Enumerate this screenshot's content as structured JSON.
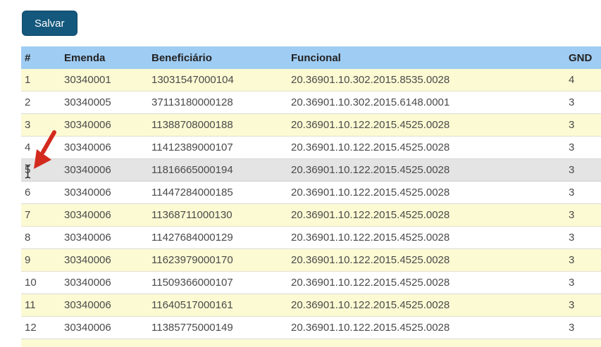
{
  "toolbar": {
    "save_label": "Salvar"
  },
  "table": {
    "columns": [
      "#",
      "Emenda",
      "Beneficiário",
      "Funcional",
      "GND"
    ],
    "rows": [
      [
        "1",
        "30340001",
        "13031547000104",
        "20.36901.10.302.2015.8535.0028",
        "4"
      ],
      [
        "2",
        "30340005",
        "37113180000128",
        "20.36901.10.302.2015.6148.0001",
        "3"
      ],
      [
        "3",
        "30340006",
        "11388708000188",
        "20.36901.10.122.2015.4525.0028",
        "3"
      ],
      [
        "4",
        "30340006",
        "11412389000107",
        "20.36901.10.122.2015.4525.0028",
        "3"
      ],
      [
        "5",
        "30340006",
        "11816665000194",
        "20.36901.10.122.2015.4525.0028",
        "3"
      ],
      [
        "6",
        "30340006",
        "11447284000185",
        "20.36901.10.122.2015.4525.0028",
        "3"
      ],
      [
        "7",
        "30340006",
        "11368711000130",
        "20.36901.10.122.2015.4525.0028",
        "3"
      ],
      [
        "8",
        "30340006",
        "11427684000129",
        "20.36901.10.122.2015.4525.0028",
        "3"
      ],
      [
        "9",
        "30340006",
        "11623979000170",
        "20.36901.10.122.2015.4525.0028",
        "3"
      ],
      [
        "10",
        "30340006",
        "11509366000107",
        "20.36901.10.122.2015.4525.0028",
        "3"
      ],
      [
        "11",
        "30340006",
        "11640517000161",
        "20.36901.10.122.2015.4525.0028",
        "3"
      ],
      [
        "12",
        "30340006",
        "11385775000149",
        "20.36901.10.122.2015.4525.0028",
        "3"
      ]
    ],
    "highlighted_row_number": 5,
    "partial_next_row": true
  },
  "annotations": {
    "red_arrow_target": "row-5",
    "text_cursor_over": "row-5-number-cell"
  },
  "colors": {
    "button_bg": "#14587d",
    "header_bg": "#9fccf3",
    "row_odd_bg": "#fcfad3",
    "row_even_bg": "#ffffff",
    "selected_row_bg": "#e4e4e4",
    "arrow_red": "#d32a1e"
  }
}
